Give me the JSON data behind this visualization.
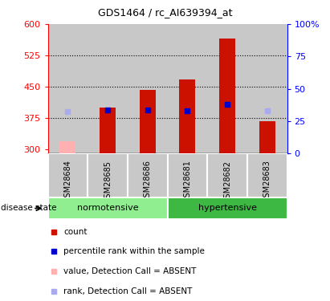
{
  "title": "GDS1464 / rc_AI639394_at",
  "samples": [
    "GSM28684",
    "GSM28685",
    "GSM28686",
    "GSM28681",
    "GSM28682",
    "GSM28683"
  ],
  "groups": [
    "normotensive",
    "normotensive",
    "normotensive",
    "hypertensive",
    "hypertensive",
    "hypertensive"
  ],
  "group_colors": {
    "normotensive": "#90EE90",
    "hypertensive": "#3CB843"
  },
  "count_values": [
    null,
    400,
    443,
    468,
    565,
    368
  ],
  "count_absent": [
    320,
    null,
    null,
    null,
    null,
    null
  ],
  "rank_values": [
    null,
    395,
    395,
    393,
    408,
    null
  ],
  "rank_absent": [
    390,
    null,
    null,
    null,
    null,
    393
  ],
  "ylim_left": [
    290,
    600
  ],
  "yticks_left": [
    300,
    375,
    450,
    525,
    600
  ],
  "yticks_right_pct": [
    0,
    25,
    50,
    75,
    100
  ],
  "bar_color": "#CC1100",
  "bar_absent_color": "#FFB0B0",
  "rank_color": "#0000CC",
  "rank_absent_color": "#AAAAEE",
  "col_bg_color": "#C8C8C8",
  "bar_width": 0.4,
  "legend_items": [
    {
      "label": "count",
      "color": "#CC1100"
    },
    {
      "label": "percentile rank within the sample",
      "color": "#0000CC"
    },
    {
      "label": "value, Detection Call = ABSENT",
      "color": "#FFB0B0"
    },
    {
      "label": "rank, Detection Call = ABSENT",
      "color": "#AAAAEE"
    }
  ]
}
